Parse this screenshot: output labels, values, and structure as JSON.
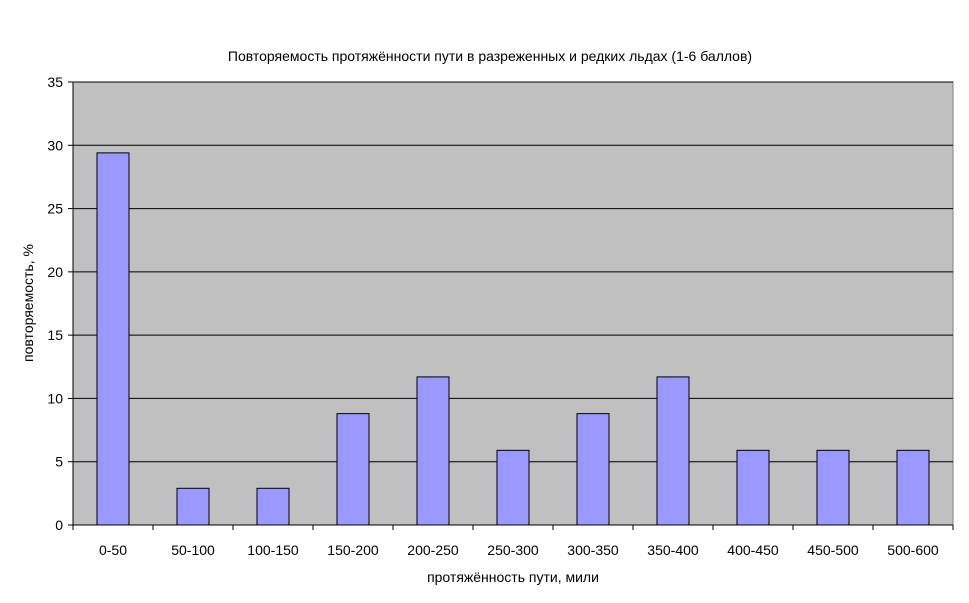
{
  "chart_data": {
    "type": "bar",
    "title": "Повторяемость протяжённости пути в разреженных и редких льдах (1-6 баллов)",
    "xlabel": "протяжённость пути, мили",
    "ylabel": "повторяемость, %",
    "categories": [
      "0-50",
      "50-100",
      "100-150",
      "150-200",
      "200-250",
      "250-300",
      "300-350",
      "350-400",
      "400-450",
      "450-500",
      "500-600"
    ],
    "series": [
      {
        "values": [
          29.4,
          2.9,
          2.9,
          8.8,
          11.7,
          5.9,
          8.8,
          11.7,
          5.9,
          5.9,
          5.9
        ]
      }
    ],
    "ylim": [
      0,
      35
    ],
    "yticks": [
      0,
      5,
      10,
      15,
      20,
      25,
      30,
      35
    ],
    "grid": "horizontal",
    "legend": "none",
    "colors": {
      "bar_fill": "#9999ff",
      "bar_stroke": "#000000",
      "plot_background": "#c0c0c0",
      "gridline": "#000000"
    }
  }
}
